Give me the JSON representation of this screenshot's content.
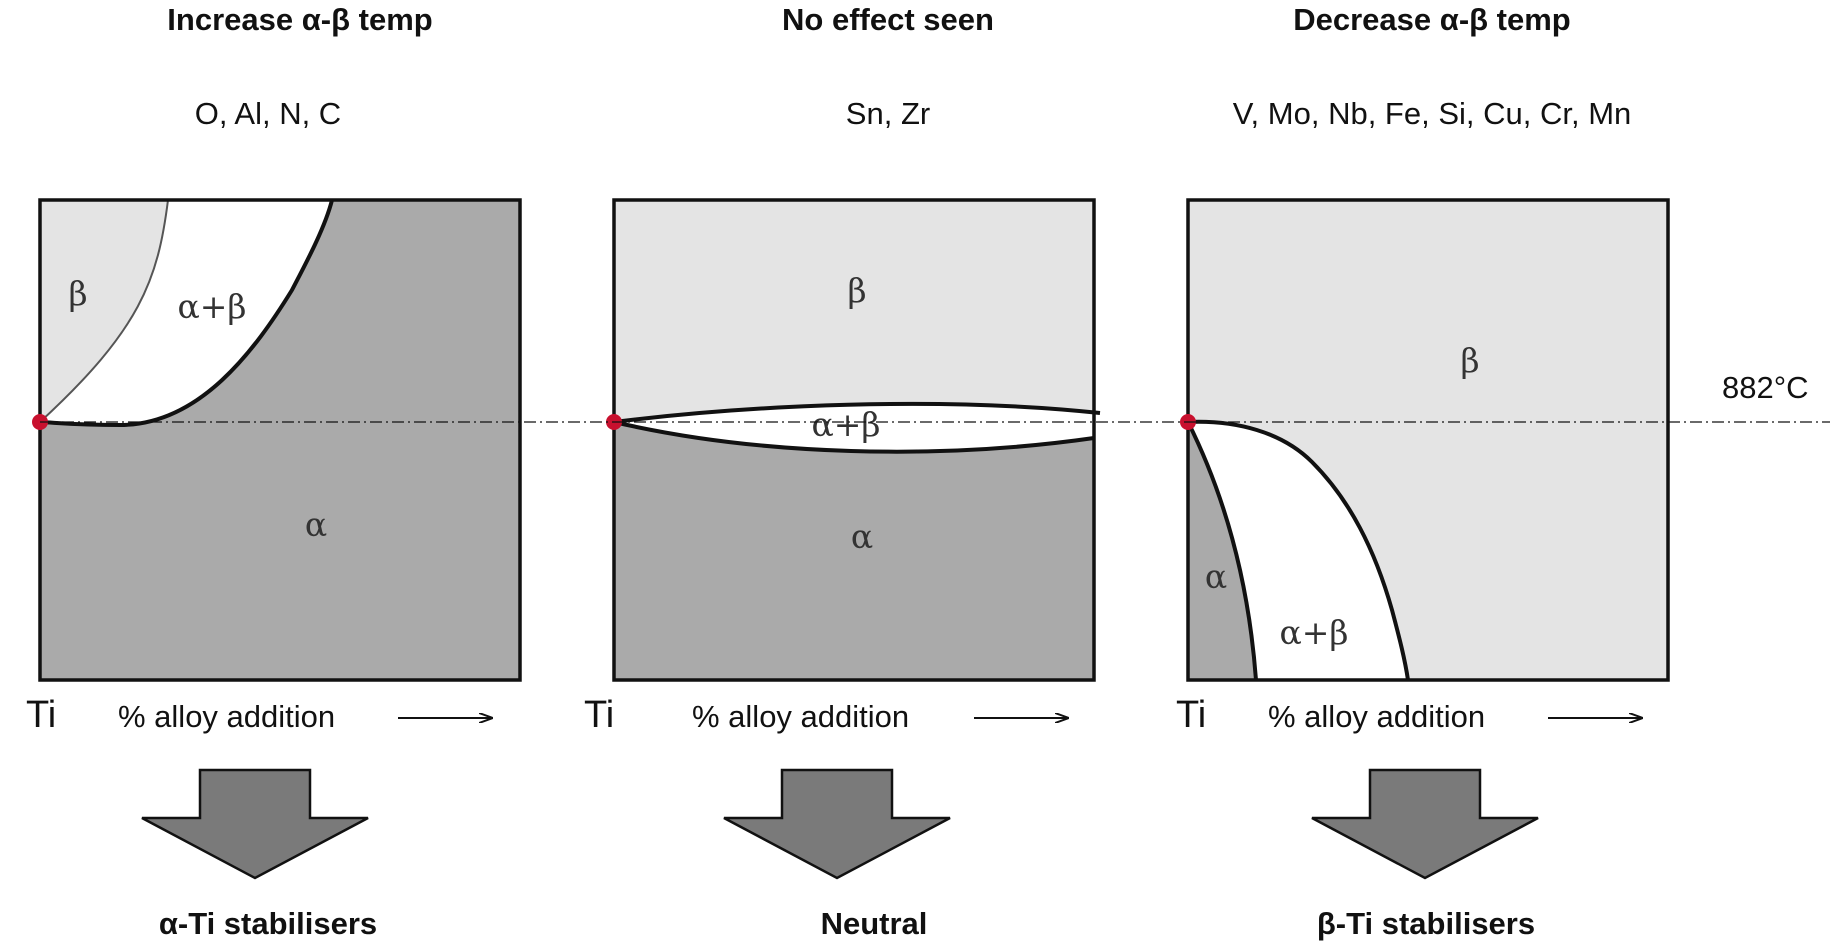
{
  "diagram_data": {
    "reference_temperature_label": "882°C",
    "panels": [
      {
        "header": "Increase α-β temp",
        "elements": "O, Al, N, C",
        "phase_labels": {
          "beta": "β",
          "alpha_beta": "α+β",
          "alpha": "α"
        },
        "origin_label": "Ti",
        "x_axis_label": "% alloy addition",
        "outcome": "α-Ti stabilisers"
      },
      {
        "header": "No effect seen",
        "elements": "Sn, Zr",
        "phase_labels": {
          "beta": "β",
          "alpha_beta": "α+β",
          "alpha": "α"
        },
        "origin_label": "Ti",
        "x_axis_label": "% alloy addition",
        "outcome": "Neutral"
      },
      {
        "header": "Decrease α-β temp",
        "elements": "V, Mo, Nb, Fe, Si, Cu, Cr, Mn",
        "phase_labels": {
          "beta": "β",
          "alpha_beta": "α+β",
          "alpha": "α"
        },
        "origin_label": "Ti",
        "x_axis_label": "% alloy addition",
        "outcome": "β-Ti stabilisers"
      }
    ],
    "colors": {
      "alpha_region": "#aaaaaa",
      "beta_region": "#e4e4e4",
      "alpha_beta_region": "#ffffff",
      "arrow_fill": "#7a7a7a",
      "origin_dot": "#c8102e"
    }
  }
}
